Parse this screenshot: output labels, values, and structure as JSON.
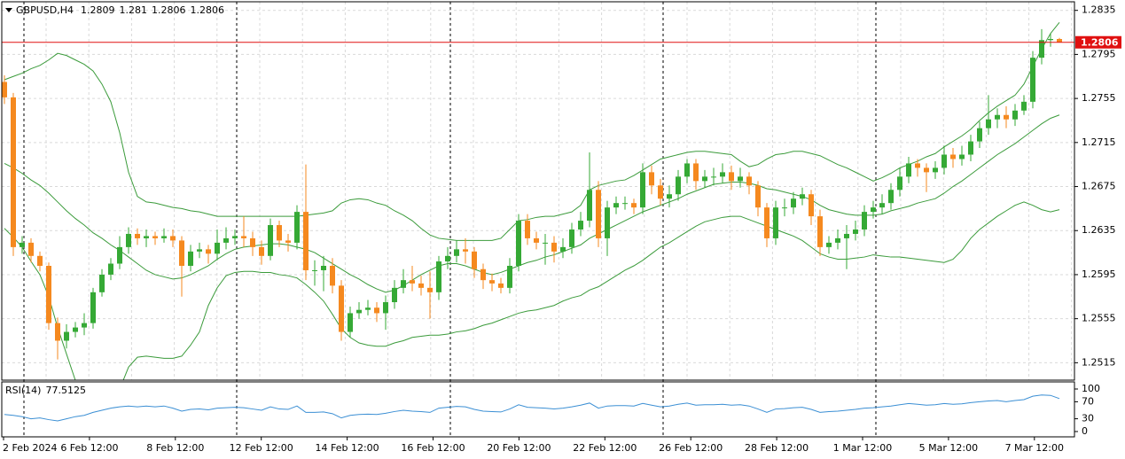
{
  "chart_data": {
    "type": "candlestick",
    "symbol": "GBPUSD,H4",
    "bull_color": "#35a935",
    "bear_color": "#f5891f",
    "open": [
      1.277,
      1.2756,
      1.262,
      1.2624,
      1.2612,
      1.2603,
      1.2551,
      1.2535,
      1.2543,
      1.2547,
      1.2551,
      1.2579,
      1.2595,
      1.2605,
      1.262,
      1.2632,
      1.2628,
      1.263,
      1.2628,
      1.263,
      1.2626,
      1.2603,
      1.2616,
      1.2618,
      1.2614,
      1.2624,
      1.2628,
      1.263,
      1.2628,
      1.262,
      1.2612,
      1.264,
      1.2626,
      1.2624,
      1.2652,
      1.2599,
      1.2599,
      1.2603,
      1.2585,
      1.2543,
      1.256,
      1.2563,
      1.2565,
      1.256,
      1.257,
      1.2583,
      1.259,
      1.2587,
      1.2583,
      1.2579,
      1.2607,
      1.2612,
      1.2618,
      1.2616,
      1.26,
      1.259,
      1.2587,
      1.2583,
      1.2603,
      1.2644,
      1.2628,
      1.2624,
      1.2624,
      1.2616,
      1.262,
      1.2636,
      1.2644,
      1.2672,
      1.2628,
      1.2656,
      1.266,
      1.266,
      1.2656,
      1.2688,
      1.2676,
      1.2664,
      1.2668,
      1.2684,
      1.2696,
      1.268,
      1.2684,
      1.2684,
      1.2688,
      1.268,
      1.2684,
      1.2676,
      1.2656,
      1.2628,
      1.2656,
      1.2656,
      1.2664,
      1.2668,
      1.2648,
      1.262,
      1.2624,
      1.2628,
      1.2632,
      1.2636,
      1.2652,
      1.2656,
      1.266,
      1.2672,
      1.2684,
      1.2696,
      1.2692,
      1.2688,
      1.2692,
      1.2704,
      1.27,
      1.2704,
      1.2716,
      1.2728,
      1.2736,
      1.274,
      1.2736,
      1.2744,
      1.2752,
      1.2792,
      1.2808,
      1.2809
    ],
    "high": [
      1.2776,
      1.276,
      1.263,
      1.2628,
      1.2616,
      1.2606,
      1.2556,
      1.255,
      1.2552,
      1.256,
      1.2583,
      1.26,
      1.261,
      1.263,
      1.2638,
      1.2637,
      1.2636,
      1.2634,
      1.2637,
      1.2636,
      1.263,
      1.2622,
      1.2624,
      1.2622,
      1.2636,
      1.2638,
      1.2636,
      1.2648,
      1.2634,
      1.2626,
      1.2646,
      1.2644,
      1.2632,
      1.2658,
      1.2695,
      1.2608,
      1.2612,
      1.261,
      1.259,
      1.2566,
      1.257,
      1.2572,
      1.257,
      1.2576,
      1.259,
      1.26,
      1.2603,
      1.2594,
      1.2598,
      1.2612,
      1.262,
      1.2626,
      1.2628,
      1.262,
      1.2605,
      1.2596,
      1.2592,
      1.261,
      1.265,
      1.265,
      1.2634,
      1.2632,
      1.263,
      1.2628,
      1.2642,
      1.2652,
      1.2706,
      1.268,
      1.2662,
      1.2666,
      1.2666,
      1.2664,
      1.2696,
      1.2694,
      1.2682,
      1.2676,
      1.269,
      1.27,
      1.27,
      1.269,
      1.2692,
      1.2696,
      1.2694,
      1.2692,
      1.2688,
      1.268,
      1.266,
      1.2662,
      1.2664,
      1.267,
      1.2674,
      1.2672,
      1.2654,
      1.263,
      1.2636,
      1.264,
      1.2644,
      1.2658,
      1.2662,
      1.2668,
      1.2678,
      1.2692,
      1.2702,
      1.27,
      1.2696,
      1.2698,
      1.2712,
      1.271,
      1.2712,
      1.2722,
      1.2734,
      1.2758,
      1.2746,
      1.2748,
      1.275,
      1.2758,
      1.2798,
      1.2818,
      1.2814,
      1.281
    ],
    "low": [
      1.275,
      1.2612,
      1.2614,
      1.2606,
      1.2598,
      1.2545,
      1.2518,
      1.2528,
      1.2538,
      1.254,
      1.2546,
      1.2575,
      1.259,
      1.26,
      1.2614,
      1.2622,
      1.262,
      1.2622,
      1.2624,
      1.262,
      1.2575,
      1.2598,
      1.261,
      1.2605,
      1.2608,
      1.2618,
      1.2622,
      1.262,
      1.2612,
      1.2604,
      1.2608,
      1.262,
      1.2616,
      1.2618,
      1.259,
      1.2585,
      1.258,
      1.2578,
      1.2535,
      1.2538,
      1.2555,
      1.2558,
      1.2552,
      1.2545,
      1.2564,
      1.2578,
      1.258,
      1.2576,
      1.2555,
      1.2572,
      1.26,
      1.2606,
      1.2605,
      1.2592,
      1.2582,
      1.258,
      1.2578,
      1.2578,
      1.2598,
      1.2622,
      1.2618,
      1.2604,
      1.2606,
      1.261,
      1.2614,
      1.263,
      1.2638,
      1.262,
      1.2612,
      1.265,
      1.2654,
      1.265,
      1.265,
      1.2668,
      1.2658,
      1.2656,
      1.2662,
      1.2678,
      1.2672,
      1.2674,
      1.2676,
      1.2678,
      1.2672,
      1.2674,
      1.2668,
      1.2648,
      1.262,
      1.2622,
      1.2648,
      1.265,
      1.2658,
      1.264,
      1.2612,
      1.2614,
      1.2618,
      1.26,
      1.2626,
      1.263,
      1.2646,
      1.265,
      1.2654,
      1.2666,
      1.2678,
      1.2684,
      1.267,
      1.2682,
      1.2686,
      1.2692,
      1.2694,
      1.2698,
      1.271,
      1.2722,
      1.2728,
      1.2728,
      1.273,
      1.274,
      1.2746,
      1.2786,
      1.2802,
      1.2806
    ],
    "close": [
      1.2756,
      1.262,
      1.2624,
      1.2612,
      1.2603,
      1.2551,
      1.2535,
      1.2543,
      1.2547,
      1.2551,
      1.2579,
      1.2595,
      1.2605,
      1.262,
      1.2632,
      1.2628,
      1.263,
      1.2628,
      1.263,
      1.2626,
      1.2603,
      1.2616,
      1.2618,
      1.2614,
      1.2624,
      1.2628,
      1.263,
      1.2628,
      1.262,
      1.2612,
      1.264,
      1.2626,
      1.2624,
      1.2652,
      1.2599,
      1.2599,
      1.2603,
      1.2585,
      1.2543,
      1.256,
      1.2563,
      1.2565,
      1.256,
      1.257,
      1.2583,
      1.259,
      1.2587,
      1.2583,
      1.2579,
      1.2607,
      1.2612,
      1.2618,
      1.2616,
      1.26,
      1.259,
      1.2587,
      1.2583,
      1.2603,
      1.2644,
      1.2628,
      1.2624,
      1.2624,
      1.2616,
      1.262,
      1.2636,
      1.2644,
      1.2672,
      1.2628,
      1.2656,
      1.266,
      1.266,
      1.2656,
      1.2688,
      1.2676,
      1.2664,
      1.2668,
      1.2684,
      1.2696,
      1.268,
      1.2684,
      1.2684,
      1.2688,
      1.268,
      1.2684,
      1.2676,
      1.2656,
      1.2628,
      1.2656,
      1.2656,
      1.2664,
      1.2668,
      1.2648,
      1.262,
      1.2624,
      1.2628,
      1.2632,
      1.2636,
      1.2652,
      1.2656,
      1.266,
      1.2672,
      1.2684,
      1.2696,
      1.2692,
      1.2688,
      1.2692,
      1.2704,
      1.27,
      1.2704,
      1.2716,
      1.2728,
      1.2736,
      1.274,
      1.2736,
      1.2744,
      1.2752,
      1.2792,
      1.2808,
      1.2809,
      1.2806
    ],
    "bands": {
      "color": "#3b9b3b",
      "upper": [
        1.2772,
        1.2775,
        1.2778,
        1.2782,
        1.2785,
        1.279,
        1.2796,
        1.2794,
        1.279,
        1.2786,
        1.278,
        1.2768,
        1.2752,
        1.2724,
        1.2688,
        1.2666,
        1.2661,
        1.266,
        1.2658,
        1.2656,
        1.2655,
        1.2653,
        1.2652,
        1.265,
        1.2648,
        1.2648,
        1.2648,
        1.2648,
        1.2648,
        1.2648,
        1.2648,
        1.2648,
        1.2648,
        1.2648,
        1.2649,
        1.265,
        1.2651,
        1.2653,
        1.266,
        1.2663,
        1.2664,
        1.2663,
        1.266,
        1.2658,
        1.2653,
        1.2649,
        1.2644,
        1.2637,
        1.2631,
        1.2628,
        1.2627,
        1.2626,
        1.2626,
        1.2626,
        1.2626,
        1.2626,
        1.2628,
        1.2636,
        1.2644,
        1.2645,
        1.2647,
        1.2648,
        1.2648,
        1.265,
        1.2652,
        1.2658,
        1.2672,
        1.2676,
        1.2678,
        1.268,
        1.2681,
        1.2685,
        1.269,
        1.2695,
        1.27,
        1.2702,
        1.2704,
        1.2706,
        1.2707,
        1.2707,
        1.2706,
        1.2705,
        1.2704,
        1.2698,
        1.2693,
        1.2695,
        1.27,
        1.2704,
        1.2705,
        1.2707,
        1.2707,
        1.2705,
        1.2703,
        1.2699,
        1.2695,
        1.2692,
        1.2688,
        1.2684,
        1.268,
        1.2683,
        1.2687,
        1.2692,
        1.2695,
        1.2698,
        1.2702,
        1.2705,
        1.2711,
        1.2716,
        1.2721,
        1.2727,
        1.2735,
        1.2742,
        1.2748,
        1.2753,
        1.2758,
        1.2768,
        1.2784,
        1.28,
        1.2814,
        1.2824
      ],
      "middle": [
        1.2696,
        1.2692,
        1.2687,
        1.2681,
        1.2676,
        1.2669,
        1.2661,
        1.2653,
        1.2646,
        1.264,
        1.2633,
        1.2628,
        1.2622,
        1.2617,
        1.2611,
        1.2605,
        1.2599,
        1.2595,
        1.2593,
        1.2591,
        1.2592,
        1.2595,
        1.2599,
        1.2603,
        1.2609,
        1.2614,
        1.2618,
        1.262,
        1.2621,
        1.2622,
        1.2623,
        1.2623,
        1.2622,
        1.262,
        1.2618,
        1.2615,
        1.261,
        1.2605,
        1.26,
        1.2595,
        1.2591,
        1.2586,
        1.2582,
        1.2579,
        1.2581,
        1.2585,
        1.259,
        1.2595,
        1.2599,
        1.2603,
        1.2605,
        1.2605,
        1.2603,
        1.26,
        1.2597,
        1.2595,
        1.2597,
        1.26,
        1.2603,
        1.2606,
        1.2608,
        1.2611,
        1.2613,
        1.2616,
        1.2619,
        1.2622,
        1.2628,
        1.2632,
        1.2636,
        1.264,
        1.2644,
        1.2648,
        1.2652,
        1.2655,
        1.2658,
        1.2661,
        1.2664,
        1.2668,
        1.2671,
        1.2674,
        1.2677,
        1.2678,
        1.2679,
        1.2679,
        1.2678,
        1.2676,
        1.2673,
        1.2672,
        1.267,
        1.2668,
        1.2666,
        1.2663,
        1.2658,
        1.2654,
        1.2652,
        1.265,
        1.2649,
        1.2649,
        1.2649,
        1.265,
        1.2653,
        1.2655,
        1.2657,
        1.266,
        1.2662,
        1.2664,
        1.2669,
        1.2675,
        1.268,
        1.2686,
        1.2692,
        1.2698,
        1.2704,
        1.2709,
        1.2714,
        1.272,
        1.2726,
        1.2732,
        1.2737,
        1.274
      ],
      "lower": [
        1.2637,
        1.2629,
        1.262,
        1.2607,
        1.2595,
        1.2575,
        1.2547,
        1.2523,
        1.2499,
        1.2479,
        1.2471,
        1.2467,
        1.2473,
        1.2491,
        1.2511,
        1.252,
        1.2521,
        1.252,
        1.2519,
        1.2519,
        1.2521,
        1.2531,
        1.2543,
        1.2567,
        1.2583,
        1.2594,
        1.2597,
        1.2598,
        1.2598,
        1.2597,
        1.2597,
        1.2595,
        1.2594,
        1.2592,
        1.2586,
        1.2579,
        1.2571,
        1.2559,
        1.2546,
        1.2538,
        1.2533,
        1.2531,
        1.253,
        1.253,
        1.2533,
        1.2535,
        1.2538,
        1.2539,
        1.254,
        1.254,
        1.2541,
        1.2543,
        1.2544,
        1.2546,
        1.2549,
        1.2551,
        1.2554,
        1.2557,
        1.256,
        1.2562,
        1.2563,
        1.2565,
        1.2567,
        1.2571,
        1.2574,
        1.2576,
        1.2581,
        1.2584,
        1.2589,
        1.2594,
        1.2599,
        1.2603,
        1.2608,
        1.2614,
        1.262,
        1.2624,
        1.2629,
        1.2634,
        1.2639,
        1.2643,
        1.2645,
        1.2647,
        1.2648,
        1.2648,
        1.2645,
        1.2642,
        1.2639,
        1.2636,
        1.2633,
        1.263,
        1.2626,
        1.262,
        1.2614,
        1.2611,
        1.2609,
        1.2609,
        1.261,
        1.2611,
        1.2613,
        1.2612,
        1.2611,
        1.2611,
        1.261,
        1.2609,
        1.2608,
        1.2607,
        1.2606,
        1.2609,
        1.2617,
        1.2628,
        1.2636,
        1.2642,
        1.2648,
        1.2653,
        1.2658,
        1.2661,
        1.2658,
        1.2654,
        1.2652,
        1.2654
      ]
    },
    "ylim": [
      1.25,
      1.2842
    ],
    "yticks": [
      1.2835,
      1.2795,
      1.2755,
      1.2715,
      1.2675,
      1.2635,
      1.2595,
      1.2555,
      1.2515
    ],
    "grid": true,
    "x_labels": [
      "2 Feb 2024",
      "6 Feb 12:00",
      "8 Feb 12:00",
      "12 Feb 12:00",
      "14 Feb 12:00",
      "16 Feb 12:00",
      "20 Feb 12:00",
      "22 Feb 12:00",
      "26 Feb 12:00",
      "28 Feb 12:00",
      "1 Mar 12:00",
      "5 Mar 12:00",
      "7 Mar 12:00"
    ],
    "last_price_color": "#e01010",
    "rsi": {
      "label": "RSI(14)",
      "color": "#3b8fd4",
      "ylim": [
        0,
        100
      ],
      "yticks": [
        100,
        70,
        30,
        0
      ],
      "values": [
        40,
        38,
        35,
        30,
        32,
        28,
        25,
        30,
        35,
        38,
        45,
        50,
        55,
        58,
        60,
        58,
        60,
        58,
        60,
        55,
        48,
        52,
        53,
        51,
        55,
        56,
        57,
        56,
        53,
        50,
        58,
        53,
        52,
        60,
        45,
        45,
        46,
        42,
        32,
        38,
        40,
        41,
        40,
        43,
        47,
        50,
        48,
        47,
        45,
        55,
        57,
        59,
        58,
        52,
        48,
        47,
        46,
        53,
        63,
        57,
        56,
        55,
        53,
        55,
        58,
        62,
        67,
        55,
        60,
        61,
        61,
        60,
        66,
        62,
        58,
        60,
        64,
        67,
        62,
        63,
        63,
        64,
        62,
        63,
        60,
        53,
        45,
        53,
        54,
        56,
        57,
        52,
        45,
        47,
        48,
        50,
        52,
        55,
        56,
        58,
        60,
        63,
        66,
        64,
        62,
        63,
        66,
        64,
        65,
        68,
        70,
        72,
        73,
        70,
        73,
        75,
        83,
        86,
        85,
        77.5125
      ]
    }
  }
}
